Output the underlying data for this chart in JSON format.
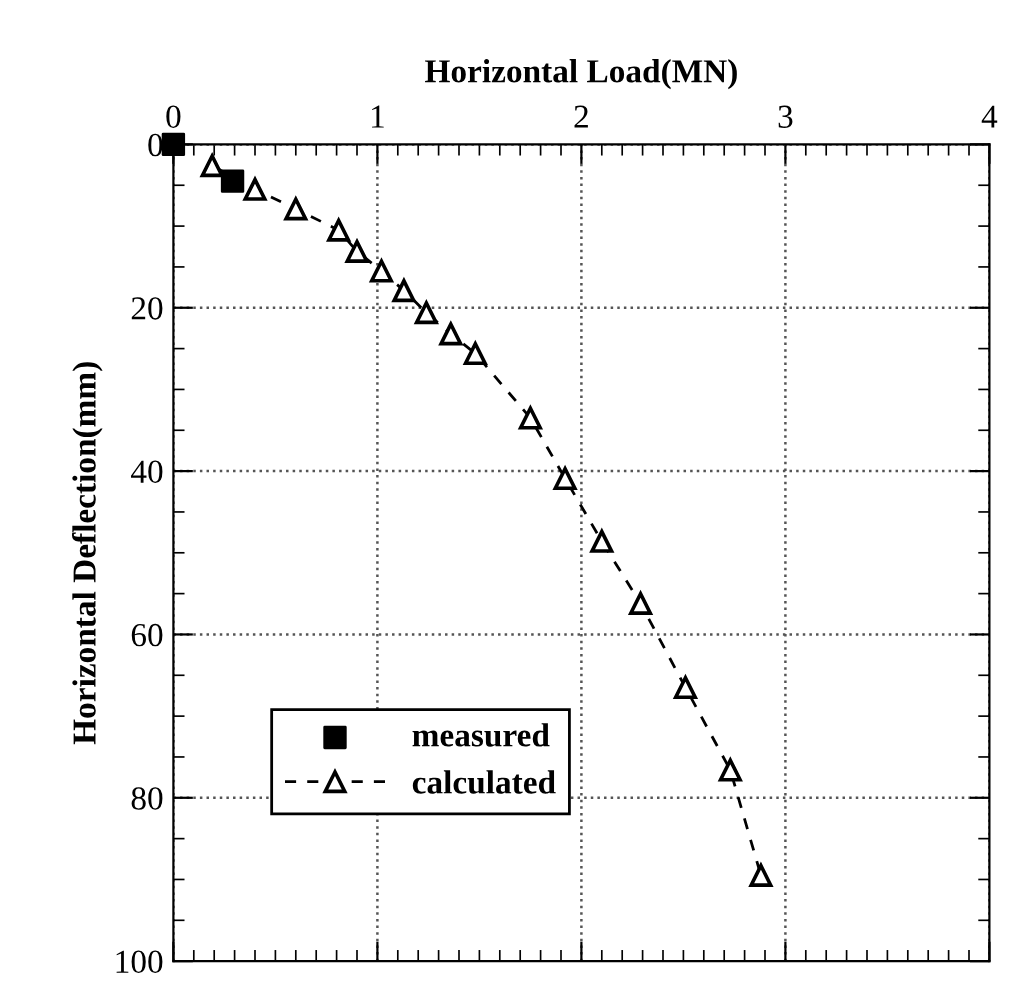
{
  "chart_data": {
    "type": "line",
    "xlabel": "Horizontal Load(MN)",
    "ylabel": "Horizontal Deflection(mm)",
    "xlim": [
      0,
      4
    ],
    "xticks": [
      0,
      1,
      2,
      3,
      4
    ],
    "ylim": [
      100,
      0
    ],
    "yticks": [
      0,
      20,
      40,
      60,
      80,
      100
    ],
    "grid": true,
    "legend": "bottom left",
    "series": [
      {
        "name": "measured",
        "type": "scatter",
        "color": "#000000",
        "marker": "square",
        "x": [
          0,
          0.29
        ],
        "values": [
          0,
          4.5
        ]
      },
      {
        "name": "calculated",
        "color": "#000000",
        "marker": "triangle",
        "line_style": "dashed",
        "x": [
          0.19,
          0.4,
          0.6,
          0.81,
          0.9,
          1.02,
          1.13,
          1.24,
          1.36,
          1.48,
          1.75,
          1.92,
          2.1,
          2.29,
          2.51,
          2.73,
          2.88
        ],
        "values": [
          2.6,
          5.5,
          7.9,
          10.5,
          13.1,
          15.5,
          17.9,
          20.6,
          23.2,
          25.6,
          33.5,
          40.9,
          48.6,
          56.2,
          66.5,
          76.6,
          89.5
        ]
      }
    ]
  }
}
